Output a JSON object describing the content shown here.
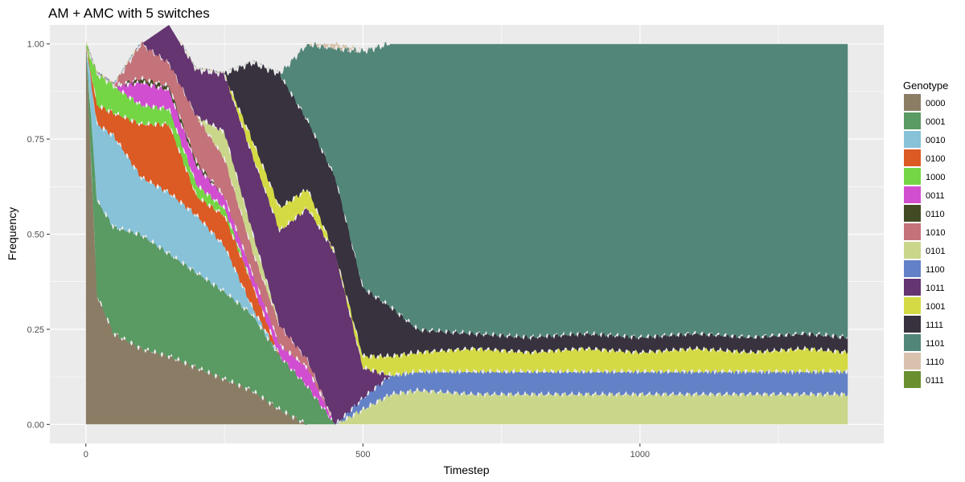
{
  "chart_data": {
    "type": "area",
    "stacked": true,
    "title": "AM + AMC with 5 switches",
    "xlabel": "Timestep",
    "ylabel": "Frequency",
    "xlim": [
      -65,
      1440
    ],
    "ylim": [
      -0.05,
      1.05
    ],
    "x_ticks": [
      0,
      500,
      1000
    ],
    "x_tick_labels": [
      "0",
      "500",
      "1000"
    ],
    "y_ticks": [
      0,
      0.25,
      0.5,
      0.75,
      1
    ],
    "y_tick_labels": [
      "0.00",
      "0.25",
      "0.50",
      "0.75",
      "1.00"
    ],
    "grid": true,
    "legend": {
      "title": "Genotype",
      "position": "right"
    },
    "x": [
      0,
      20,
      50,
      100,
      150,
      200,
      250,
      300,
      350,
      400,
      450,
      500,
      550,
      600,
      700,
      800,
      900,
      1000,
      1100,
      1200,
      1300,
      1375
    ],
    "series": [
      {
        "name": "0000",
        "color": "#8b7d65",
        "values": [
          1.0,
          0.34,
          0.24,
          0.2,
          0.18,
          0.15,
          0.12,
          0.09,
          0.04,
          0.0,
          0.0,
          0.0,
          0.0,
          0.0,
          0.0,
          0.0,
          0.0,
          0.0,
          0.0,
          0.0,
          0.0,
          0.0
        ]
      },
      {
        "name": "0001",
        "color": "#5a9a63",
        "values": [
          0.0,
          0.25,
          0.28,
          0.3,
          0.27,
          0.25,
          0.23,
          0.2,
          0.14,
          0.1,
          0.0,
          0.0,
          0.0,
          0.0,
          0.0,
          0.0,
          0.0,
          0.0,
          0.0,
          0.0,
          0.0,
          0.0
        ]
      },
      {
        "name": "0010",
        "color": "#87c2d8",
        "values": [
          0.0,
          0.2,
          0.24,
          0.15,
          0.16,
          0.15,
          0.12,
          0.02,
          0.0,
          0.0,
          0.0,
          0.0,
          0.0,
          0.0,
          0.0,
          0.0,
          0.0,
          0.0,
          0.0,
          0.0,
          0.0,
          0.0
        ]
      },
      {
        "name": "0100",
        "color": "#dc5a24",
        "values": [
          0.0,
          0.05,
          0.06,
          0.14,
          0.18,
          0.05,
          0.08,
          0.06,
          0.0,
          0.0,
          0.0,
          0.0,
          0.0,
          0.0,
          0.0,
          0.0,
          0.0,
          0.0,
          0.0,
          0.0,
          0.0,
          0.0
        ]
      },
      {
        "name": "1000",
        "color": "#74d645",
        "values": [
          0.0,
          0.08,
          0.07,
          0.05,
          0.04,
          0.03,
          0.02,
          0.0,
          0.0,
          0.0,
          0.0,
          0.0,
          0.0,
          0.0,
          0.0,
          0.0,
          0.0,
          0.0,
          0.0,
          0.0,
          0.0,
          0.0
        ]
      },
      {
        "name": "0011",
        "color": "#d14ed1",
        "values": [
          0.0,
          0.0,
          0.0,
          0.06,
          0.05,
          0.05,
          0.03,
          0.03,
          0.03,
          0.05,
          0.0,
          0.0,
          0.0,
          0.0,
          0.0,
          0.0,
          0.0,
          0.0,
          0.0,
          0.0,
          0.0,
          0.0
        ]
      },
      {
        "name": "0110",
        "color": "#424a24",
        "values": [
          0.0,
          0.0,
          0.0,
          0.01,
          0.01,
          0.01,
          0.0,
          0.0,
          0.0,
          0.0,
          0.0,
          0.0,
          0.0,
          0.0,
          0.0,
          0.0,
          0.0,
          0.0,
          0.0,
          0.0,
          0.0,
          0.0
        ]
      },
      {
        "name": "1010",
        "color": "#c4737a",
        "values": [
          0.0,
          0.0,
          0.0,
          0.09,
          0.06,
          0.12,
          0.1,
          0.06,
          0.05,
          0.02,
          0.0,
          0.0,
          0.0,
          0.0,
          0.0,
          0.0,
          0.0,
          0.0,
          0.0,
          0.0,
          0.0,
          0.0
        ]
      },
      {
        "name": "0101",
        "color": "#cad68a",
        "values": [
          0.0,
          0.0,
          0.0,
          0.0,
          0.0,
          0.0,
          0.07,
          0.05,
          0.0,
          0.0,
          0.0,
          0.04,
          0.08,
          0.09,
          0.08,
          0.08,
          0.08,
          0.08,
          0.08,
          0.08,
          0.08,
          0.08
        ]
      },
      {
        "name": "1100",
        "color": "#6381c6",
        "values": [
          0.0,
          0.0,
          0.0,
          0.0,
          0.0,
          0.0,
          0.0,
          0.0,
          0.0,
          0.0,
          0.0,
          0.03,
          0.05,
          0.05,
          0.06,
          0.06,
          0.06,
          0.06,
          0.06,
          0.06,
          0.06,
          0.06
        ]
      },
      {
        "name": "1011",
        "color": "#643570",
        "values": [
          0.0,
          0.0,
          0.0,
          0.0,
          0.1,
          0.12,
          0.15,
          0.2,
          0.25,
          0.4,
          0.45,
          0.08,
          0.0,
          0.0,
          0.0,
          0.0,
          0.0,
          0.0,
          0.0,
          0.0,
          0.0,
          0.0
        ]
      },
      {
        "name": "1001",
        "color": "#d4da44",
        "values": [
          0.0,
          0.0,
          0.0,
          0.0,
          0.0,
          0.0,
          0.0,
          0.04,
          0.06,
          0.05,
          0.0,
          0.03,
          0.05,
          0.05,
          0.06,
          0.05,
          0.06,
          0.05,
          0.06,
          0.05,
          0.06,
          0.05
        ]
      },
      {
        "name": "1111",
        "color": "#37323e",
        "values": [
          0.0,
          0.0,
          0.0,
          0.0,
          0.0,
          0.0,
          0.0,
          0.2,
          0.35,
          0.18,
          0.2,
          0.18,
          0.13,
          0.06,
          0.04,
          0.04,
          0.04,
          0.04,
          0.04,
          0.04,
          0.04,
          0.04
        ]
      },
      {
        "name": "1101",
        "color": "#528679",
        "values": [
          0.0,
          0.0,
          0.0,
          0.0,
          0.0,
          0.0,
          0.0,
          0.0,
          0.0,
          0.2,
          0.34,
          0.62,
          0.69,
          0.75,
          0.76,
          0.77,
          0.76,
          0.77,
          0.76,
          0.77,
          0.76,
          0.77
        ]
      },
      {
        "name": "1110",
        "color": "#d8c2ae",
        "values": [
          0.0,
          0.0,
          0.0,
          0.0,
          0.0,
          0.0,
          0.0,
          0.0,
          0.0,
          0.0,
          0.01,
          0.0,
          0.0,
          0.0,
          0.0,
          0.0,
          0.0,
          0.0,
          0.0,
          0.0,
          0.0,
          0.0
        ]
      },
      {
        "name": "0111",
        "color": "#6a8f30",
        "values": [
          0.0,
          0.0,
          0.0,
          0.0,
          0.0,
          0.0,
          0.0,
          0.0,
          0.0,
          0.0,
          0.0,
          0.0,
          0.0,
          0.0,
          0.0,
          0.0,
          0.0,
          0.0,
          0.0,
          0.0,
          0.0,
          0.0
        ]
      }
    ],
    "panel_background": "#ebebeb",
    "grid_color": "#ffffff"
  }
}
